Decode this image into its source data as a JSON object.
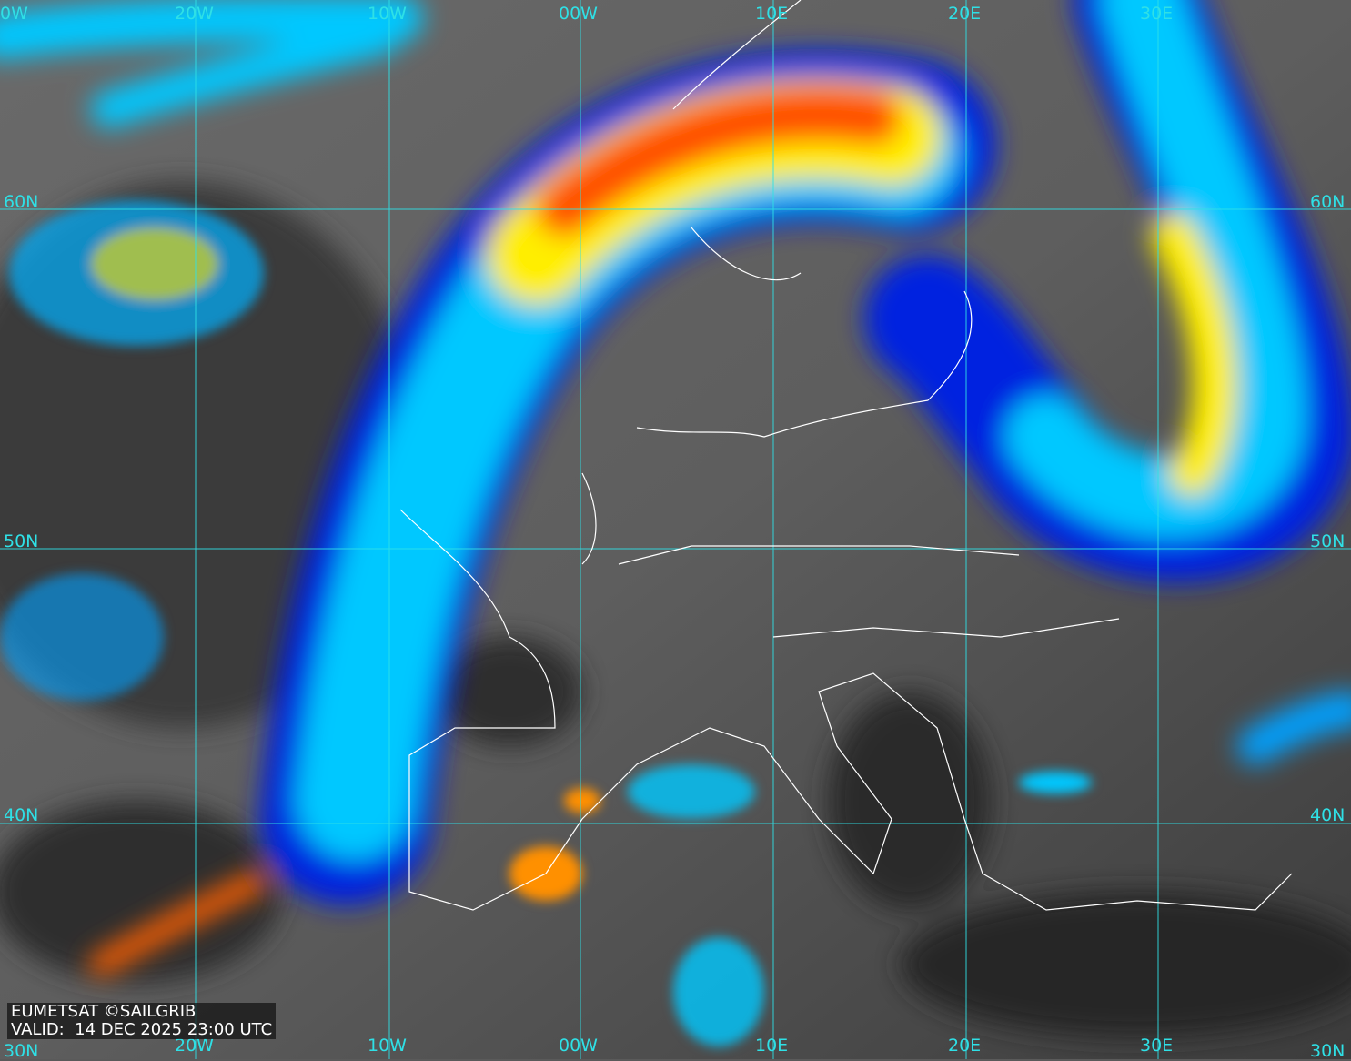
{
  "map": {
    "type": "satellite infrared imagery",
    "colors": {
      "grid": "#2fe0e6",
      "coastline": "#ffffff",
      "cloud_cold": "#ff3000",
      "cloud_mid": "#ffff00",
      "cloud_warm": "#00c8ff",
      "cloud_edge": "#0020e0"
    },
    "top_labels": [
      "0W",
      "20W",
      "10W",
      "00W",
      "10E",
      "20E",
      "30E"
    ],
    "bottom_labels": [
      "30N",
      "20W",
      "10W",
      "00W",
      "10E",
      "20E",
      "30E",
      "30N"
    ],
    "left_labels": [
      "60N",
      "50N",
      "40N"
    ],
    "right_labels": [
      "60N",
      "50N",
      "40N"
    ]
  },
  "caption": {
    "line1": "EUMETSAT ©SAILGRIB",
    "line2": "VALID:  14 DEC 2025 23:00 UTC"
  }
}
